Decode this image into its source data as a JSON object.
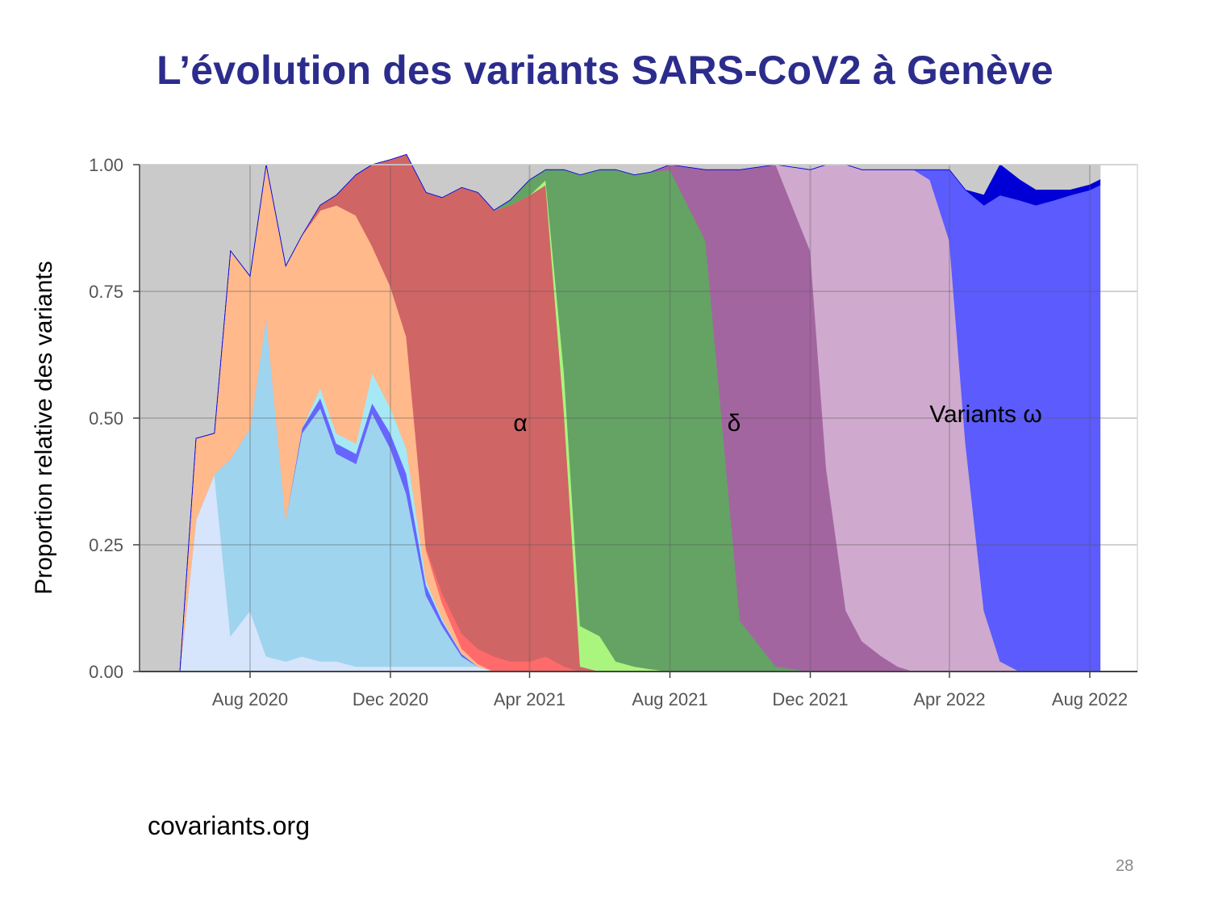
{
  "slide": {
    "title": "L’évolution des variants SARS-CoV2 à Genève",
    "source": "covariants.org",
    "page_number": "28"
  },
  "chart_data": {
    "type": "area",
    "stacked": true,
    "title": "",
    "xlabel": "",
    "ylabel": "Proportion relative des variants",
    "ylim": [
      0,
      1
    ],
    "y_ticks": [
      "0.00",
      "0.25",
      "0.50",
      "0.75",
      "1.00"
    ],
    "x_ticks": [
      "Aug 2020",
      "Dec 2020",
      "Apr 2021",
      "Aug 2021",
      "Dec 2021",
      "Apr 2022",
      "Aug 2022"
    ],
    "grid": true,
    "background_color": "#cacaca",
    "x": [
      "2020-05-01",
      "2020-06-01",
      "2020-06-15",
      "2020-07-01",
      "2020-07-15",
      "2020-08-01",
      "2020-08-15",
      "2020-09-01",
      "2020-09-15",
      "2020-10-01",
      "2020-10-15",
      "2020-11-01",
      "2020-11-15",
      "2020-12-01",
      "2020-12-15",
      "2021-01-01",
      "2021-01-15",
      "2021-02-01",
      "2021-02-15",
      "2021-03-01",
      "2021-03-15",
      "2021-04-01",
      "2021-04-15",
      "2021-05-01",
      "2021-05-15",
      "2021-06-01",
      "2021-06-15",
      "2021-07-01",
      "2021-07-15",
      "2021-08-01",
      "2021-09-01",
      "2021-10-01",
      "2021-11-01",
      "2021-12-01",
      "2021-12-15",
      "2022-01-01",
      "2022-01-15",
      "2022-02-01",
      "2022-02-15",
      "2022-03-01",
      "2022-03-15",
      "2022-04-01",
      "2022-04-15",
      "2022-05-01",
      "2022-05-15",
      "2022-06-01",
      "2022-06-15",
      "2022-07-01",
      "2022-07-15",
      "2022-08-01",
      "2022-08-10"
    ],
    "series": [
      {
        "name": "",
        "color": "#d6e5fb",
        "values": [
          0,
          0,
          0.3,
          0.39,
          0.07,
          0.12,
          0.03,
          0.02,
          0.03,
          0.02,
          0.02,
          0.01,
          0.01,
          0.01,
          0.01,
          0.01,
          0.01,
          0.01,
          0.01,
          0,
          0,
          0,
          0,
          0,
          0,
          0,
          0,
          0,
          0,
          0,
          0,
          0,
          0,
          0,
          0,
          0,
          0,
          0,
          0,
          0,
          0,
          0,
          0,
          0,
          0,
          0,
          0,
          0,
          0,
          0,
          0
        ]
      },
      {
        "name": "",
        "color": "#9fd4ef",
        "values": [
          0,
          0,
          0,
          0,
          0.35,
          0.36,
          0.67,
          0.28,
          0.44,
          0.5,
          0.41,
          0.4,
          0.5,
          0.43,
          0.34,
          0.14,
          0.08,
          0.02,
          0,
          0,
          0,
          0,
          0,
          0,
          0,
          0,
          0,
          0,
          0,
          0,
          0,
          0,
          0,
          0,
          0,
          0,
          0,
          0,
          0,
          0,
          0,
          0,
          0,
          0,
          0,
          0,
          0,
          0,
          0,
          0,
          0
        ]
      },
      {
        "name": "",
        "color": "#6666ff",
        "values": [
          0,
          0,
          0,
          0,
          0,
          0,
          0,
          0,
          0.01,
          0.02,
          0.02,
          0.02,
          0.02,
          0.03,
          0.04,
          0.02,
          0.01,
          0.005,
          0,
          0,
          0,
          0,
          0,
          0,
          0,
          0,
          0,
          0,
          0,
          0,
          0,
          0,
          0,
          0,
          0,
          0,
          0,
          0,
          0,
          0,
          0,
          0,
          0,
          0,
          0,
          0,
          0,
          0,
          0,
          0,
          0
        ]
      },
      {
        "name": "",
        "color": "#a6e8f5",
        "values": [
          0,
          0,
          0,
          0,
          0,
          0,
          0,
          0,
          0,
          0.02,
          0.02,
          0.02,
          0.06,
          0.05,
          0.05,
          0.01,
          0.005,
          0,
          0,
          0,
          0,
          0,
          0,
          0,
          0,
          0,
          0,
          0,
          0,
          0,
          0,
          0,
          0,
          0,
          0,
          0,
          0,
          0,
          0,
          0,
          0,
          0,
          0,
          0,
          0,
          0,
          0,
          0,
          0,
          0,
          0
        ]
      },
      {
        "name": "",
        "color": "#ffb98b",
        "values": [
          0,
          0,
          0.16,
          0.08,
          0.41,
          0.3,
          0.3,
          0.5,
          0.38,
          0.35,
          0.45,
          0.45,
          0.25,
          0.24,
          0.22,
          0.06,
          0.03,
          0.01,
          0.005,
          0,
          0,
          0,
          0,
          0,
          0,
          0,
          0,
          0,
          0,
          0,
          0,
          0,
          0,
          0,
          0,
          0,
          0,
          0,
          0,
          0,
          0,
          0,
          0,
          0,
          0,
          0,
          0,
          0,
          0,
          0,
          0
        ]
      },
      {
        "name": "",
        "color": "#ff6b6b",
        "values": [
          0,
          0,
          0,
          0,
          0,
          0,
          0,
          0,
          0,
          0,
          0,
          0,
          0,
          0,
          0,
          0.005,
          0.02,
          0.03,
          0.03,
          0.03,
          0.02,
          0.02,
          0.03,
          0.01,
          0,
          0,
          0,
          0,
          0,
          0,
          0,
          0,
          0,
          0,
          0,
          0,
          0,
          0,
          0,
          0,
          0,
          0,
          0,
          0,
          0,
          0,
          0,
          0,
          0,
          0,
          0
        ]
      },
      {
        "name": "α",
        "color": "#d06565",
        "values": [
          0,
          0,
          0,
          0,
          0,
          0,
          0,
          0,
          0,
          0.01,
          0.02,
          0.08,
          0.16,
          0.25,
          0.36,
          0.7,
          0.78,
          0.88,
          0.9,
          0.88,
          0.9,
          0.92,
          0.93,
          0.5,
          0.01,
          0,
          0,
          0,
          0,
          0,
          0,
          0,
          0,
          0,
          0,
          0,
          0,
          0,
          0,
          0,
          0,
          0,
          0,
          0,
          0,
          0,
          0,
          0,
          0,
          0,
          0
        ]
      },
      {
        "name": "",
        "color": "#a9f57e",
        "values": [
          0,
          0,
          0,
          0,
          0,
          0,
          0,
          0,
          0,
          0,
          0,
          0,
          0,
          0,
          0,
          0,
          0,
          0,
          0,
          0,
          0,
          0,
          0.01,
          0.08,
          0.08,
          0.07,
          0.02,
          0.01,
          0.005,
          0,
          0,
          0,
          0,
          0,
          0,
          0,
          0,
          0,
          0,
          0,
          0,
          0,
          0,
          0,
          0,
          0,
          0,
          0,
          0,
          0,
          0
        ]
      },
      {
        "name": "δ",
        "color": "#64a364",
        "values": [
          0,
          0,
          0,
          0,
          0,
          0,
          0,
          0,
          0,
          0,
          0,
          0,
          0,
          0,
          0,
          0,
          0,
          0,
          0,
          0,
          0.01,
          0.03,
          0.02,
          0.4,
          0.89,
          0.92,
          0.97,
          0.97,
          0.98,
          0.99,
          0.85,
          0.1,
          0.01,
          0,
          0,
          0,
          0,
          0,
          0,
          0,
          0,
          0,
          0,
          0,
          0,
          0,
          0,
          0,
          0,
          0,
          0
        ]
      },
      {
        "name": "",
        "color": "#a365a0",
        "values": [
          0,
          0,
          0,
          0,
          0,
          0,
          0,
          0,
          0,
          0,
          0,
          0,
          0,
          0,
          0,
          0,
          0,
          0,
          0,
          0,
          0,
          0,
          0,
          0,
          0,
          0,
          0,
          0,
          0,
          0.01,
          0.14,
          0.89,
          0.99,
          0.83,
          0.4,
          0.12,
          0.06,
          0.03,
          0.01,
          0,
          0,
          0,
          0,
          0,
          0,
          0,
          0,
          0,
          0,
          0,
          0
        ]
      },
      {
        "name": "Variants ω",
        "color": "#cfaace",
        "values": [
          0,
          0,
          0,
          0,
          0,
          0,
          0,
          0,
          0,
          0,
          0,
          0,
          0,
          0,
          0,
          0,
          0,
          0,
          0,
          0,
          0,
          0,
          0,
          0,
          0,
          0,
          0,
          0,
          0,
          0,
          0,
          0,
          0,
          0.16,
          0.6,
          0.88,
          0.93,
          0.96,
          0.98,
          0.99,
          0.97,
          0.85,
          0.45,
          0.12,
          0.02,
          0,
          0,
          0,
          0,
          0,
          0
        ]
      },
      {
        "name": "",
        "color": "#5b5bfe",
        "values": [
          0,
          0,
          0,
          0,
          0,
          0,
          0,
          0,
          0,
          0,
          0,
          0,
          0,
          0,
          0,
          0,
          0,
          0,
          0,
          0,
          0,
          0,
          0,
          0,
          0,
          0,
          0,
          0,
          0,
          0,
          0,
          0,
          0,
          0,
          0,
          0,
          0,
          0,
          0,
          0,
          0.02,
          0.14,
          0.5,
          0.8,
          0.92,
          0.93,
          0.92,
          0.93,
          0.94,
          0.95,
          0.96
        ]
      },
      {
        "name": "",
        "color": "#0000d6",
        "values": [
          0,
          0,
          0,
          0,
          0,
          0,
          0,
          0,
          0,
          0,
          0,
          0,
          0,
          0,
          0,
          0,
          0,
          0,
          0,
          0,
          0,
          0,
          0,
          0,
          0,
          0,
          0,
          0,
          0,
          0,
          0,
          0,
          0,
          0,
          0,
          0,
          0,
          0,
          0,
          0,
          0,
          0,
          0,
          0.02,
          0.06,
          0.04,
          0.03,
          0.02,
          0.01,
          0.01,
          0.01
        ]
      }
    ],
    "annotations": [
      "α",
      "δ",
      "Variants ω"
    ]
  }
}
